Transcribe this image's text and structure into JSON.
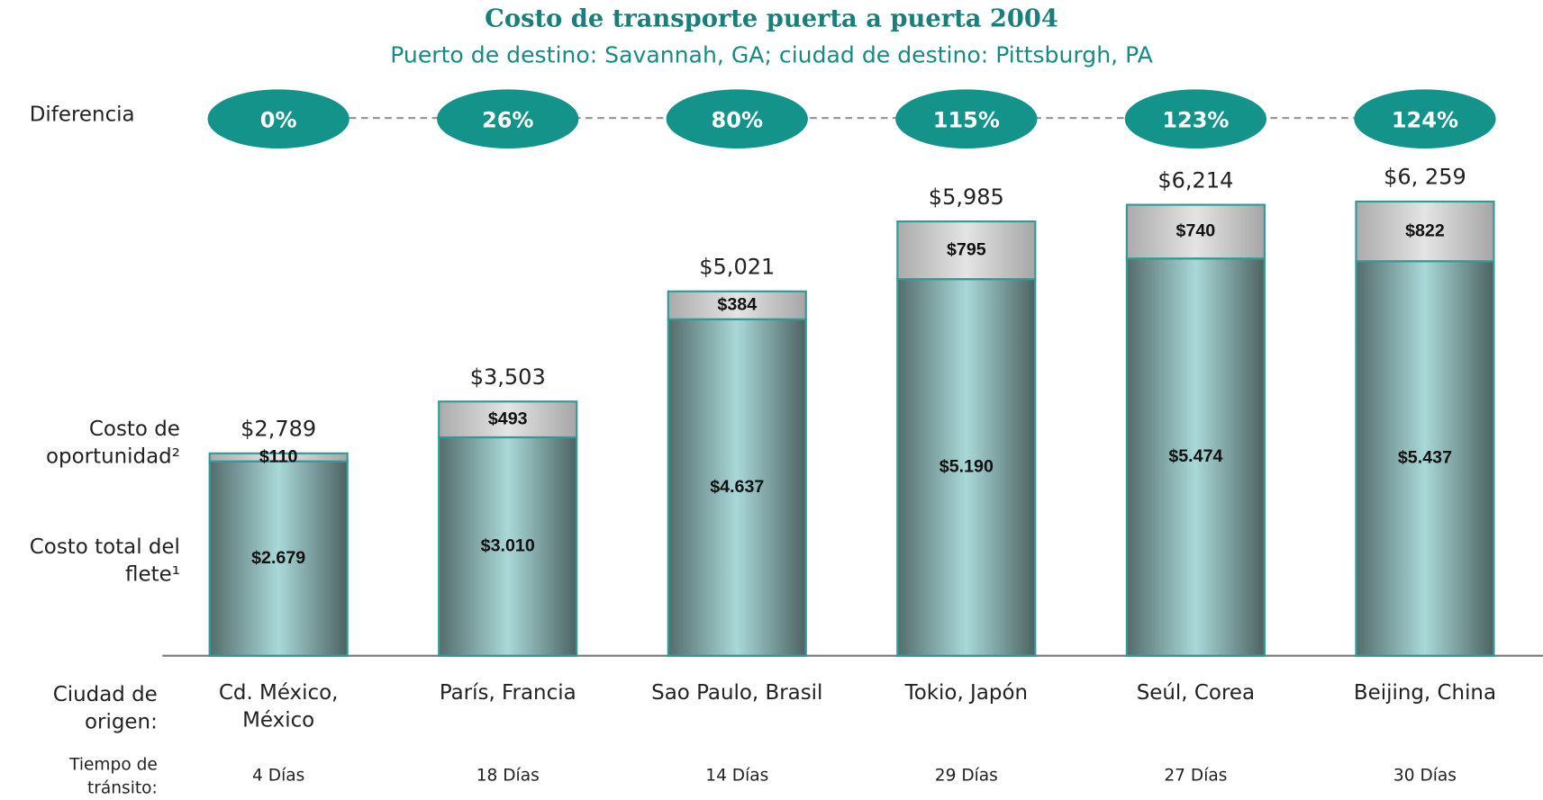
{
  "chart_data": {
    "type": "stacked_bar",
    "title": "Costo de transporte puerta a puerta 2004",
    "subtitle": "Puerto de destino: Savannah, GA; ciudad de destino: Pittsburgh, PA",
    "x_label": "Ciudad de origen:",
    "categories": [
      "Cd. México, México",
      "París, Francia",
      "Sao Paulo, Brasil",
      "Tokio, Japón",
      "Seúl, Corea",
      "Beijing, China"
    ],
    "series": [
      {
        "name": "Costo total del flete¹",
        "color": "#a9d8d8",
        "values": [
          2679,
          3010,
          4637,
          5190,
          5474,
          5437
        ],
        "value_labels": [
          "$2.679",
          "$3.010",
          "$4.637",
          "$5.190",
          "$5.474",
          "$5.437"
        ]
      },
      {
        "name": "Costo de oportunidad²",
        "color": "#e4e4e4",
        "values": [
          110,
          493,
          384,
          795,
          740,
          822
        ],
        "value_labels": [
          "$110",
          "$493",
          "$384",
          "$795",
          "$740",
          "$822"
        ]
      }
    ],
    "totals": [
      2789,
      3503,
      5021,
      5985,
      6214,
      6259
    ],
    "total_labels": [
      "$2,789",
      "$3,503",
      "$5,021",
      "$5,985",
      "$6,214",
      "$6, 259"
    ],
    "difference": {
      "label": "Diferencia",
      "color": "#14938b",
      "values": [
        0,
        26,
        80,
        115,
        123,
        124
      ],
      "value_labels": [
        "0%",
        "26%",
        "80%",
        "115%",
        "123%",
        "124%"
      ]
    },
    "transit": {
      "label": "Tiempo de tránsito:",
      "values": [
        "4 Días",
        "18 Días",
        "14 Días",
        "29 Días",
        "27 Días",
        "30 Días"
      ]
    }
  }
}
